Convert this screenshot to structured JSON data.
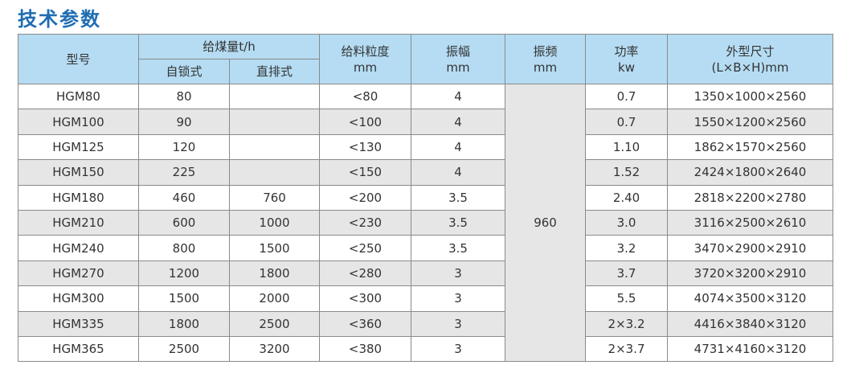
{
  "title": "技术参数",
  "headers": {
    "model": "型号",
    "feed": "给煤量t/h",
    "self_lock": "自锁式",
    "direct": "直排式",
    "size": "给料粒度",
    "size_unit": "mm",
    "amp": "振幅",
    "amp_unit": "mm",
    "freq": "振频",
    "freq_unit": "mm",
    "power": "功率",
    "power_unit": "kw",
    "dim": "外型尺寸",
    "dim_unit": "(L×B×H)mm"
  },
  "freq_value": "960",
  "rows": [
    [
      "HGM80",
      "80",
      "",
      "<80",
      "4",
      "0.7",
      "1350×1000×2560"
    ],
    [
      "HGM100",
      "90",
      "",
      "<100",
      "4",
      "0.7",
      "1550×1200×2560"
    ],
    [
      "HGM125",
      "120",
      "",
      "<130",
      "4",
      "1.10",
      "1862×1570×2560"
    ],
    [
      "HGM150",
      "225",
      "",
      "<150",
      "4",
      "1.52",
      "2424×1800×2640"
    ],
    [
      "HGM180",
      "460",
      "760",
      "<200",
      "3.5",
      "2.40",
      "2818×2200×2780"
    ],
    [
      "HGM210",
      "600",
      "1000",
      "<230",
      "3.5",
      "3.0",
      "3116×2500×2610"
    ],
    [
      "HGM240",
      "800",
      "1500",
      "<250",
      "3.5",
      "3.2",
      "3470×2900×2910"
    ],
    [
      "HGM270",
      "1200",
      "1800",
      "<280",
      "3",
      "3.7",
      "3720×3200×2910"
    ],
    [
      "HGM300",
      "1500",
      "2000",
      "<300",
      "3",
      "5.5",
      "4074×3500×3120"
    ],
    [
      "HGM335",
      "1800",
      "2500",
      "<360",
      "3",
      "2×3.2",
      "4416×3840×3120"
    ],
    [
      "HGM365",
      "2500",
      "3200",
      "<380",
      "3",
      "2×3.7",
      "4731×4160×3120"
    ]
  ]
}
